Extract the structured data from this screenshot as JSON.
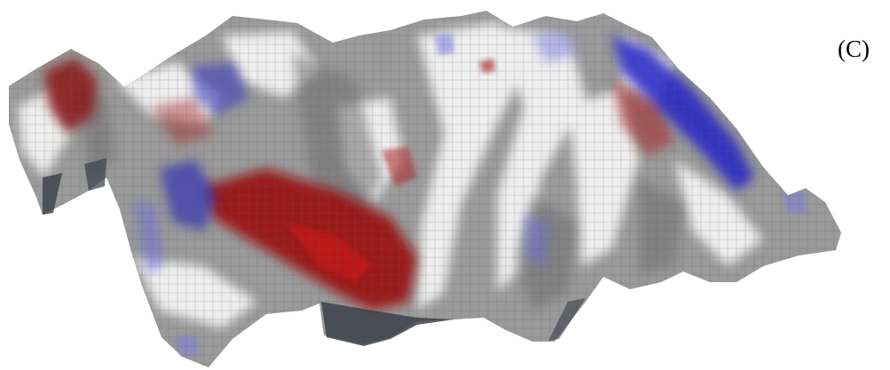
{
  "figure": {
    "panel_label": "(C)",
    "rendering": "3d-terrain-surface",
    "colors": {
      "background": "#ffffff",
      "base_gray": "#9a9a9a",
      "light": "#f2f2f2",
      "shadow": "#3b3f4a",
      "red_region": "#9b1010",
      "blue_region": "#2424c8"
    }
  }
}
